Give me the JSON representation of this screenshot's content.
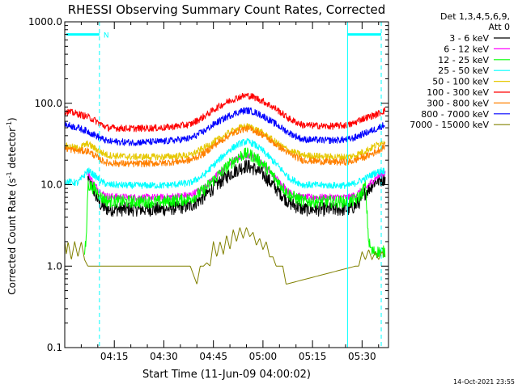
{
  "page": {
    "footer_date": "14-Oct-2021 23:55"
  },
  "chart_data": {
    "type": "line",
    "title": "RHESSI Observing Summary Count Rates, Corrected",
    "xlabel": "Start Time (11-Jun-09 04:00:02)",
    "ylabel_prefix": "Corrected Count Rate (s",
    "ylabel_mid": " detector",
    "ylabel_suffix": ")",
    "ylabel_superscript": "-1",
    "y_scale": "log",
    "ylim": [
      0.1,
      1000
    ],
    "y_ticks": [
      {
        "value": 0.1,
        "label": "0.1"
      },
      {
        "value": 1,
        "label": "1.0"
      },
      {
        "value": 10,
        "label": "10.0"
      },
      {
        "value": 100,
        "label": "100.0"
      },
      {
        "value": 1000,
        "label": "1000.0"
      }
    ],
    "xlim_minutes": [
      0,
      98
    ],
    "x_ticks": [
      {
        "minutes": 15,
        "label": "04:15"
      },
      {
        "minutes": 30,
        "label": "04:30"
      },
      {
        "minutes": 45,
        "label": "04:45"
      },
      {
        "minutes": 60,
        "label": "05:00"
      },
      {
        "minutes": 75,
        "label": "05:15"
      },
      {
        "minutes": 90,
        "label": "05:30"
      }
    ],
    "legend_placement": "top-right",
    "legend_header": [
      "Det 1,3,4,5,6,9,",
      "Att 0"
    ],
    "series": [
      {
        "name": "3 - 6 keV",
        "color": "#000000",
        "points": [
          [
            7,
            12
          ],
          [
            9,
            8
          ],
          [
            11,
            5.5
          ],
          [
            13,
            5
          ],
          [
            20,
            5
          ],
          [
            30,
            5
          ],
          [
            38,
            5.5
          ],
          [
            42,
            7
          ],
          [
            46,
            10
          ],
          [
            50,
            13.5
          ],
          [
            53,
            16
          ],
          [
            55,
            17
          ],
          [
            57,
            16
          ],
          [
            60,
            13.5
          ],
          [
            64,
            9
          ],
          [
            68,
            6
          ],
          [
            72,
            5
          ],
          [
            80,
            5
          ],
          [
            86,
            5
          ],
          [
            88,
            5.5
          ],
          [
            89,
            6
          ],
          [
            91,
            8
          ],
          [
            94,
            11
          ],
          [
            97,
            12
          ]
        ]
      },
      {
        "name": "6 - 12 keV",
        "color": "#ff00ff",
        "points": [
          [
            7,
            14
          ],
          [
            9,
            10
          ],
          [
            11,
            8
          ],
          [
            13,
            7.2
          ],
          [
            20,
            7
          ],
          [
            30,
            7
          ],
          [
            38,
            7.5
          ],
          [
            42,
            9
          ],
          [
            46,
            13
          ],
          [
            50,
            18
          ],
          [
            53,
            22
          ],
          [
            55,
            23
          ],
          [
            57,
            22
          ],
          [
            60,
            18
          ],
          [
            64,
            12
          ],
          [
            68,
            8
          ],
          [
            72,
            7
          ],
          [
            80,
            7
          ],
          [
            86,
            7
          ],
          [
            88,
            7.5
          ],
          [
            89,
            8
          ],
          [
            91,
            9
          ],
          [
            94,
            12
          ],
          [
            97,
            14
          ]
        ]
      },
      {
        "name": "12 - 25 keV",
        "color": "#00ff00",
        "points": [
          [
            6,
            1.5
          ],
          [
            6.5,
            2
          ],
          [
            7,
            10
          ],
          [
            9,
            9
          ],
          [
            11,
            7
          ],
          [
            13,
            6.3
          ],
          [
            20,
            6.2
          ],
          [
            30,
            6.2
          ],
          [
            38,
            6.7
          ],
          [
            42,
            8.5
          ],
          [
            46,
            12.5
          ],
          [
            50,
            18
          ],
          [
            53,
            22.5
          ],
          [
            55,
            24
          ],
          [
            57,
            22.5
          ],
          [
            60,
            18
          ],
          [
            64,
            11.5
          ],
          [
            68,
            7.5
          ],
          [
            72,
            6.3
          ],
          [
            80,
            6.2
          ],
          [
            86,
            6.2
          ],
          [
            88,
            6.5
          ],
          [
            89,
            7
          ],
          [
            90,
            8
          ],
          [
            91,
            10
          ],
          [
            92,
            2
          ],
          [
            93,
            1.5
          ],
          [
            97,
            1.5
          ]
        ]
      },
      {
        "name": "25 - 50 keV",
        "color": "#00ffff",
        "points": [
          [
            0,
            11
          ],
          [
            4,
            10.5
          ],
          [
            7,
            15
          ],
          [
            9,
            13
          ],
          [
            11,
            11
          ],
          [
            13,
            10
          ],
          [
            20,
            9.8
          ],
          [
            30,
            9.8
          ],
          [
            38,
            10.5
          ],
          [
            42,
            13
          ],
          [
            46,
            19
          ],
          [
            50,
            27
          ],
          [
            53,
            32
          ],
          [
            55,
            34
          ],
          [
            57,
            32
          ],
          [
            60,
            26
          ],
          [
            64,
            18
          ],
          [
            68,
            12
          ],
          [
            72,
            10
          ],
          [
            80,
            9.8
          ],
          [
            86,
            9.8
          ],
          [
            88,
            10.5
          ],
          [
            89,
            11
          ],
          [
            91,
            12
          ],
          [
            94,
            14
          ],
          [
            97,
            15
          ]
        ]
      },
      {
        "name": "50 - 100 keV",
        "color": "#e6c800",
        "points": [
          [
            0,
            30
          ],
          [
            4,
            28
          ],
          [
            7,
            32
          ],
          [
            9,
            28
          ],
          [
            11,
            25
          ],
          [
            13,
            23
          ],
          [
            20,
            22
          ],
          [
            30,
            22
          ],
          [
            38,
            23
          ],
          [
            42,
            28
          ],
          [
            46,
            35
          ],
          [
            50,
            44
          ],
          [
            53,
            50
          ],
          [
            55,
            52
          ],
          [
            57,
            50
          ],
          [
            60,
            43
          ],
          [
            64,
            33
          ],
          [
            68,
            26
          ],
          [
            72,
            23
          ],
          [
            80,
            22
          ],
          [
            86,
            22
          ],
          [
            88,
            23
          ],
          [
            89,
            24
          ],
          [
            91,
            26
          ],
          [
            94,
            30
          ],
          [
            97,
            35
          ]
        ]
      },
      {
        "name": "100 - 300 keV",
        "color": "#ff0000",
        "points": [
          [
            0,
            80
          ],
          [
            4,
            74
          ],
          [
            7,
            68
          ],
          [
            9,
            62
          ],
          [
            11,
            55
          ],
          [
            13,
            50
          ],
          [
            20,
            49
          ],
          [
            30,
            50
          ],
          [
            38,
            55
          ],
          [
            42,
            68
          ],
          [
            46,
            88
          ],
          [
            50,
            108
          ],
          [
            53,
            120
          ],
          [
            55,
            125
          ],
          [
            57,
            120
          ],
          [
            60,
            106
          ],
          [
            64,
            85
          ],
          [
            68,
            64
          ],
          [
            72,
            54
          ],
          [
            80,
            52
          ],
          [
            86,
            54
          ],
          [
            88,
            58
          ],
          [
            89,
            62
          ],
          [
            91,
            66
          ],
          [
            94,
            72
          ],
          [
            97,
            82
          ]
        ]
      },
      {
        "name": "300 - 800 keV",
        "color": "#ff8000",
        "points": [
          [
            0,
            28
          ],
          [
            4,
            26
          ],
          [
            7,
            26
          ],
          [
            9,
            23
          ],
          [
            11,
            20
          ],
          [
            13,
            18.5
          ],
          [
            20,
            18
          ],
          [
            30,
            18.5
          ],
          [
            38,
            20
          ],
          [
            42,
            24
          ],
          [
            46,
            32
          ],
          [
            50,
            41
          ],
          [
            53,
            47
          ],
          [
            55,
            49
          ],
          [
            57,
            47
          ],
          [
            60,
            41
          ],
          [
            64,
            31
          ],
          [
            68,
            24
          ],
          [
            72,
            20
          ],
          [
            80,
            19
          ],
          [
            86,
            19
          ],
          [
            88,
            20
          ],
          [
            89,
            21
          ],
          [
            91,
            22
          ],
          [
            94,
            25
          ],
          [
            97,
            30
          ]
        ]
      },
      {
        "name": "800 - 7000 keV",
        "color": "#0000ff",
        "points": [
          [
            0,
            55
          ],
          [
            4,
            50
          ],
          [
            7,
            45
          ],
          [
            9,
            41
          ],
          [
            11,
            37
          ],
          [
            13,
            34
          ],
          [
            20,
            33
          ],
          [
            30,
            34
          ],
          [
            38,
            37
          ],
          [
            42,
            45
          ],
          [
            46,
            58
          ],
          [
            50,
            71
          ],
          [
            53,
            79
          ],
          [
            55,
            82
          ],
          [
            57,
            79
          ],
          [
            60,
            70
          ],
          [
            64,
            55
          ],
          [
            68,
            43
          ],
          [
            72,
            36
          ],
          [
            80,
            35
          ],
          [
            86,
            36
          ],
          [
            88,
            38
          ],
          [
            89,
            40
          ],
          [
            91,
            43
          ],
          [
            94,
            48
          ],
          [
            97,
            55
          ]
        ]
      },
      {
        "name": "7000 - 15000 keV",
        "color": "#808000",
        "points": [
          [
            0,
            2
          ],
          [
            0.5,
            1.4
          ],
          [
            1,
            2
          ],
          [
            2,
            1.2
          ],
          [
            3,
            2
          ],
          [
            4,
            1.3
          ],
          [
            5,
            2
          ],
          [
            6,
            1.2
          ],
          [
            7,
            1
          ],
          [
            12,
            1
          ],
          [
            38,
            1
          ],
          [
            40,
            0.6
          ],
          [
            41,
            1
          ],
          [
            42,
            1
          ],
          [
            43,
            1.1
          ],
          [
            44,
            1
          ],
          [
            45,
            2
          ],
          [
            46,
            1.3
          ],
          [
            47,
            2
          ],
          [
            48,
            1.4
          ],
          [
            49,
            2.4
          ],
          [
            50,
            1.6
          ],
          [
            51,
            2.8
          ],
          [
            52,
            2
          ],
          [
            53,
            3
          ],
          [
            54,
            2.2
          ],
          [
            55,
            3
          ],
          [
            56,
            2.3
          ],
          [
            57,
            2.6
          ],
          [
            58,
            1.8
          ],
          [
            59,
            2.2
          ],
          [
            60,
            1.6
          ],
          [
            61,
            2
          ],
          [
            62,
            1.3
          ],
          [
            63,
            1.3
          ],
          [
            64,
            1
          ],
          [
            66,
            1
          ],
          [
            67,
            0.6
          ],
          [
            88,
            1
          ],
          [
            89,
            1
          ],
          [
            90,
            1.5
          ],
          [
            91,
            1.2
          ],
          [
            92,
            1.6
          ],
          [
            93,
            1.2
          ],
          [
            94,
            1.5
          ],
          [
            95,
            1.2
          ],
          [
            96,
            1.5
          ],
          [
            97,
            1.3
          ]
        ]
      }
    ],
    "attenuator": {
      "color": "#00ffff",
      "marker_label": "N",
      "solid_lines_minutes": [
        0,
        85.6
      ],
      "dashed_lines_minutes": [
        10.5,
        95.8
      ],
      "bar_segments": [
        {
          "from_minutes": 0.5,
          "to_minutes": 10.5,
          "value": 700
        },
        {
          "from_minutes": 85.6,
          "to_minutes": 95.8,
          "value": 700
        }
      ]
    }
  }
}
